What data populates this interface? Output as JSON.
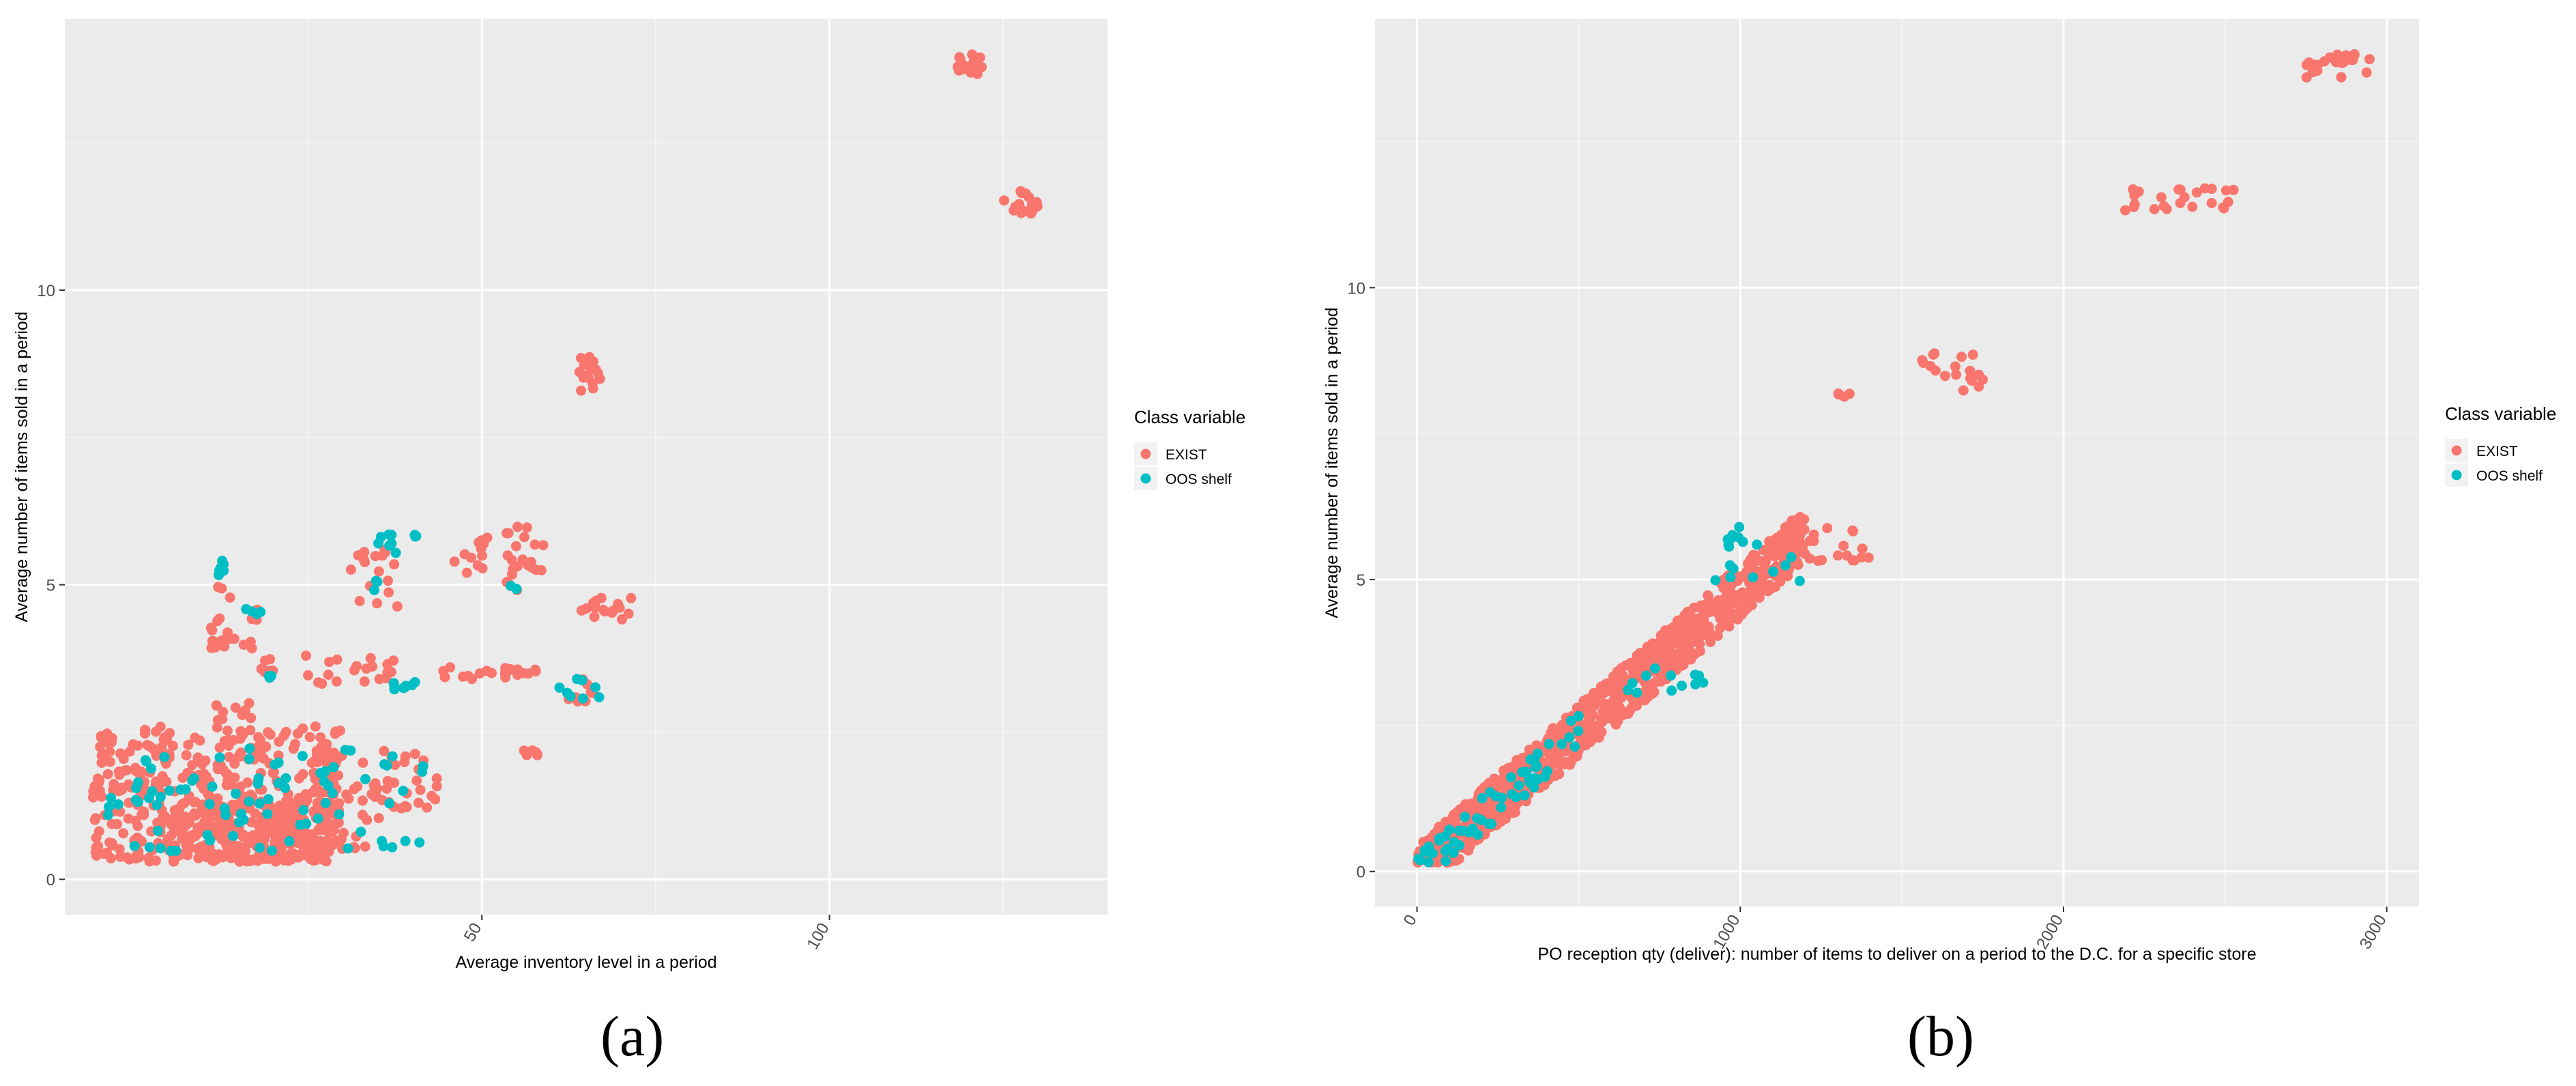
{
  "figure": {
    "panel_labels": [
      "(a)",
      "(b)"
    ]
  },
  "colors": {
    "exist": "#F8766D",
    "oos": "#00BFC4",
    "panel_bg": "#EBEBEB",
    "grid": "#FFFFFF",
    "axis_text": "#4D4D4D"
  },
  "chart_data": [
    {
      "type": "scatter",
      "panel": "(a)",
      "xlabel": "Average inventory level in a period",
      "ylabel": "Average number of items sold in a period",
      "xlim": [
        -10,
        140
      ],
      "ylim": [
        -0.6,
        14.6
      ],
      "xticks": [
        50,
        100
      ],
      "yticks": [
        0,
        5,
        10
      ],
      "ytick_labels": [
        "0",
        "5",
        "10"
      ],
      "xtick_labels": [
        "50",
        "100"
      ],
      "legend": {
        "title": "Class variable",
        "entries": [
          "EXIST",
          "OOS shelf"
        ],
        "position": "right"
      },
      "series": [
        {
          "name": "EXIST",
          "clusters": [
            {
              "x": [
                118,
                122
              ],
              "y": [
                13.6,
                14.0
              ],
              "n": 20
            },
            {
              "x": [
                125,
                131
              ],
              "y": [
                11.3,
                11.7
              ],
              "n": 18
            },
            {
              "x": [
                64,
                67
              ],
              "y": [
                8.1,
                8.9
              ],
              "n": 18
            },
            {
              "x": [
                46,
                52
              ],
              "y": [
                5.2,
                5.8
              ],
              "n": 12
            },
            {
              "x": [
                53,
                59
              ],
              "y": [
                4.9,
                6.0
              ],
              "n": 22
            },
            {
              "x": [
                64,
                72
              ],
              "y": [
                4.4,
                4.8
              ],
              "n": 18
            },
            {
              "x": [
                31,
                38
              ],
              "y": [
                4.6,
                5.6
              ],
              "n": 18
            },
            {
              "x": [
                24,
                40
              ],
              "y": [
                3.3,
                3.8
              ],
              "n": 20
            },
            {
              "x": [
                44,
                58
              ],
              "y": [
                3.4,
                3.6
              ],
              "n": 22
            },
            {
              "x": [
                62,
                66
              ],
              "y": [
                3.0,
                3.4
              ],
              "n": 8
            },
            {
              "x": [
                56,
                59
              ],
              "y": [
                2.1,
                2.2
              ],
              "n": 6
            },
            {
              "x": [
                11,
                18
              ],
              "y": [
                3.9,
                4.1
              ],
              "n": 12
            },
            {
              "x": [
                11,
                14
              ],
              "y": [
                4.0,
                5.0
              ],
              "n": 10
            },
            {
              "x": [
                16,
                19
              ],
              "y": [
                4.4,
                4.6
              ],
              "n": 6
            },
            {
              "x": [
                18,
                20
              ],
              "y": [
                3.3,
                3.8
              ],
              "n": 8
            },
            {
              "x": [
                11,
                17
              ],
              "y": [
                2.7,
                3.0
              ],
              "n": 10
            },
            {
              "x": [
                32,
                44
              ],
              "y": [
                1.2,
                2.2
              ],
              "n": 30
            },
            {
              "x": [
                -6,
                30
              ],
              "y": [
                0.3,
                2.6
              ],
              "n": 400
            },
            {
              "x": [
                3,
                28
              ],
              "y": [
                0.3,
                1.3
              ],
              "n": 200
            },
            {
              "x": [
                20,
                36
              ],
              "y": [
                0.5,
                1.6
              ],
              "n": 60
            }
          ]
        },
        {
          "name": "OOS shelf",
          "clusters": [
            {
              "x": [
                12,
                13
              ],
              "y": [
                5.0,
                5.5
              ],
              "n": 6
            },
            {
              "x": [
                35,
                41
              ],
              "y": [
                5.5,
                5.9
              ],
              "n": 10
            },
            {
              "x": [
                34,
                35
              ],
              "y": [
                4.9,
                5.1
              ],
              "n": 3
            },
            {
              "x": [
                16,
                19
              ],
              "y": [
                4.5,
                4.6
              ],
              "n": 4
            },
            {
              "x": [
                19,
                20
              ],
              "y": [
                3.4,
                3.5
              ],
              "n": 3
            },
            {
              "x": [
                37,
                41
              ],
              "y": [
                3.2,
                3.4
              ],
              "n": 8
            },
            {
              "x": [
                54,
                55
              ],
              "y": [
                4.9,
                5.0
              ],
              "n": 2
            },
            {
              "x": [
                61,
                67
              ],
              "y": [
                3.0,
                3.4
              ],
              "n": 8
            },
            {
              "x": [
                -4,
                1
              ],
              "y": [
                1.0,
                1.5
              ],
              "n": 6
            },
            {
              "x": [
                0,
                20
              ],
              "y": [
                0.3,
                2.3
              ],
              "n": 40
            },
            {
              "x": [
                18,
                42
              ],
              "y": [
                0.5,
                2.2
              ],
              "n": 40
            }
          ]
        }
      ]
    },
    {
      "type": "scatter",
      "panel": "(b)",
      "xlabel": "PO reception qty (deliver): number of items to deliver on a period to the D.C. for a specific store",
      "ylabel": "Average number of items sold in a period",
      "xlim": [
        -130,
        3100
      ],
      "ylim": [
        -0.6,
        14.6
      ],
      "xticks": [
        0,
        1000,
        2000,
        3000
      ],
      "yticks": [
        0,
        5,
        10
      ],
      "ytick_labels": [
        "0",
        "5",
        "10"
      ],
      "xtick_labels": [
        "0",
        "1000",
        "2000",
        "3000"
      ],
      "legend": {
        "title": "Class variable",
        "entries": [
          "EXIST",
          "OOS shelf"
        ],
        "position": "right"
      },
      "series": [
        {
          "name": "EXIST",
          "clusters": [
            {
              "x": [
                2740,
                2950
              ],
              "y": [
                13.6,
                14.0
              ],
              "n": 22
            },
            {
              "x": [
                2190,
                2560
              ],
              "y": [
                11.3,
                11.7
              ],
              "n": 24
            },
            {
              "x": [
                1300,
                1340
              ],
              "y": [
                8.1,
                8.2
              ],
              "n": 4
            },
            {
              "x": [
                1560,
                1760
              ],
              "y": [
                8.2,
                8.9
              ],
              "n": 18
            },
            {
              "x": [
                1160,
                1400
              ],
              "y": [
                5.3,
                6.0
              ],
              "n": 20
            },
            {
              "band": [
                0,
                1200
              ],
              "slope": 0.0048,
              "spread": 0.45,
              "n": 900
            }
          ]
        },
        {
          "name": "OOS shelf",
          "clusters": [
            {
              "x": [
                960,
                1010
              ],
              "y": [
                5.5,
                5.9
              ],
              "n": 8
            },
            {
              "x": [
                900,
                1200
              ],
              "y": [
                4.9,
                5.6
              ],
              "n": 10
            },
            {
              "x": [
                650,
                900
              ],
              "y": [
                3.0,
                3.5
              ],
              "n": 12
            },
            {
              "band": [
                0,
                500
              ],
              "slope": 0.0048,
              "spread": 0.3,
              "n": 60
            }
          ]
        }
      ]
    }
  ]
}
